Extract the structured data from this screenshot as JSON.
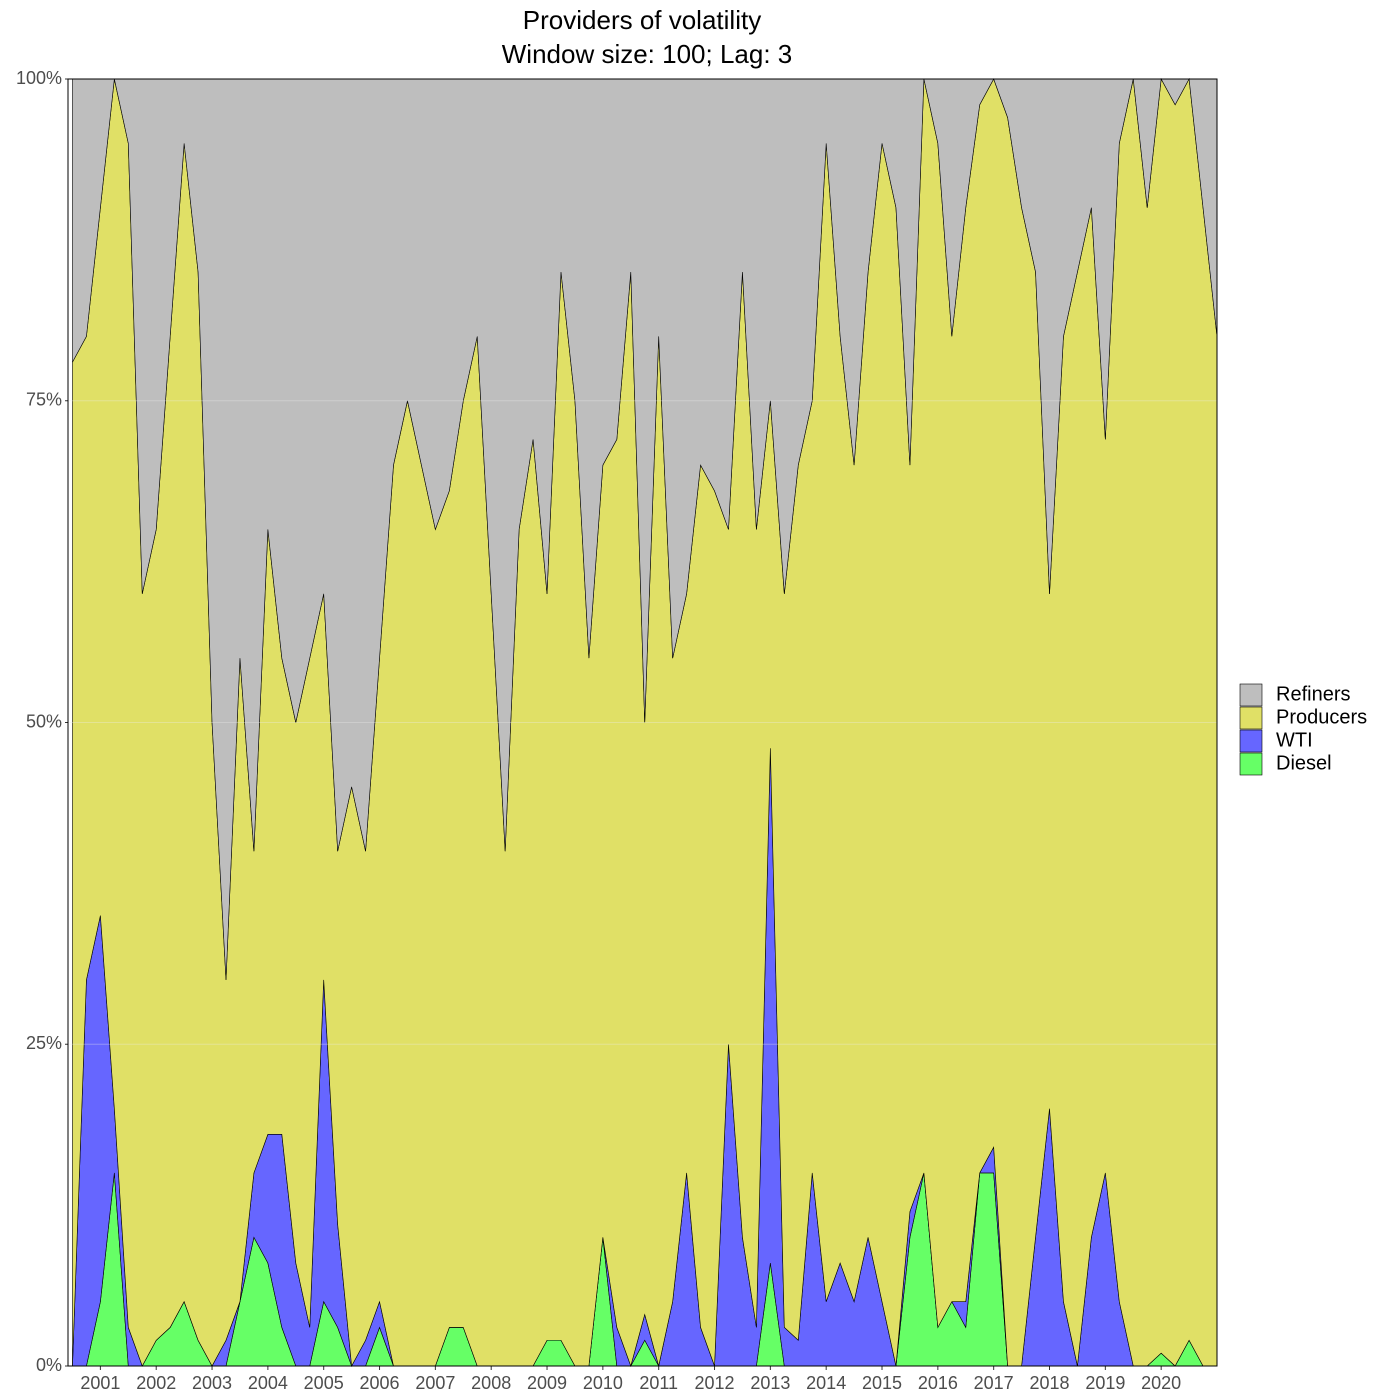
{
  "chart_data": {
    "type": "stacked_area",
    "title": "Providers of volatility",
    "subtitle": "Window size: 100; Lag: 3",
    "x": [
      2000.5,
      2000.75,
      2001.0,
      2001.25,
      2001.5,
      2001.75,
      2002.0,
      2002.25,
      2002.5,
      2002.75,
      2003.0,
      2003.25,
      2003.5,
      2003.75,
      2004.0,
      2004.25,
      2004.5,
      2004.75,
      2005.0,
      2005.25,
      2005.5,
      2005.75,
      2006.0,
      2006.25,
      2006.5,
      2006.75,
      2007.0,
      2007.25,
      2007.5,
      2007.75,
      2008.0,
      2008.25,
      2008.5,
      2008.75,
      2009.0,
      2009.25,
      2009.5,
      2009.75,
      2010.0,
      2010.25,
      2010.5,
      2010.75,
      2011.0,
      2011.25,
      2011.5,
      2011.75,
      2012.0,
      2012.25,
      2012.5,
      2012.75,
      2013.0,
      2013.25,
      2013.5,
      2013.75,
      2014.0,
      2014.25,
      2014.5,
      2014.75,
      2015.0,
      2015.25,
      2015.5,
      2015.75,
      2016.0,
      2016.25,
      2016.5,
      2016.75,
      2017.0,
      2017.25,
      2017.5,
      2017.75,
      2018.0,
      2018.25,
      2018.5,
      2018.75,
      2019.0,
      2019.25,
      2019.5,
      2019.75,
      2020.0,
      2020.25,
      2020.5,
      2020.75,
      2021.0
    ],
    "series": [
      {
        "name": "Diesel",
        "color": "#66ff66",
        "values": [
          0,
          0,
          5,
          15,
          0,
          0,
          2,
          3,
          5,
          2,
          0,
          0,
          5,
          10,
          8,
          3,
          0,
          0,
          5,
          3,
          0,
          0,
          3,
          0,
          0,
          0,
          0,
          3,
          3,
          0,
          0,
          0,
          0,
          0,
          2,
          2,
          0,
          0,
          10,
          0,
          0,
          2,
          0,
          0,
          0,
          0,
          0,
          0,
          0,
          0,
          8,
          0,
          0,
          0,
          0,
          0,
          0,
          0,
          0,
          0,
          10,
          15,
          3,
          5,
          3,
          15,
          15,
          0,
          0,
          0,
          0,
          0,
          0,
          0,
          0,
          0,
          0,
          0,
          1,
          0,
          2,
          0,
          0
        ]
      },
      {
        "name": "WTI",
        "color": "#6666ff",
        "values": [
          0,
          30,
          30,
          5,
          3,
          0,
          0,
          0,
          0,
          0,
          0,
          2,
          0,
          5,
          10,
          15,
          8,
          3,
          25,
          8,
          0,
          2,
          2,
          0,
          0,
          0,
          0,
          0,
          0,
          0,
          0,
          0,
          0,
          0,
          0,
          0,
          0,
          0,
          0,
          3,
          0,
          2,
          0,
          5,
          15,
          3,
          0,
          25,
          10,
          3,
          40,
          3,
          2,
          15,
          5,
          8,
          5,
          10,
          5,
          0,
          2,
          0,
          0,
          0,
          2,
          0,
          2,
          0,
          0,
          10,
          20,
          5,
          0,
          10,
          15,
          5,
          0,
          0,
          0,
          0,
          0,
          0,
          0
        ]
      },
      {
        "name": "Producers",
        "color": "#e0e066",
        "values": [
          78,
          50,
          55,
          80,
          92,
          60,
          63,
          77,
          90,
          83,
          50,
          28,
          50,
          25,
          47,
          37,
          42,
          52,
          30,
          29,
          45,
          38,
          50,
          70,
          75,
          70,
          65,
          65,
          72,
          80,
          60,
          40,
          65,
          72,
          58,
          83,
          75,
          55,
          60,
          69,
          85,
          46,
          80,
          50,
          45,
          67,
          68,
          40,
          75,
          62,
          27,
          57,
          68,
          60,
          90,
          72,
          65,
          75,
          90,
          90,
          58,
          85,
          92,
          75,
          85,
          83,
          83,
          97,
          90,
          75,
          40,
          75,
          85,
          80,
          57,
          90,
          100,
          90,
          99,
          98,
          98,
          90,
          80
        ]
      },
      {
        "name": "Refiners",
        "color": "#bebebe",
        "values": [
          22,
          20,
          10,
          0,
          5,
          40,
          35,
          20,
          5,
          15,
          50,
          70,
          45,
          60,
          35,
          45,
          50,
          45,
          40,
          60,
          55,
          60,
          45,
          30,
          25,
          30,
          35,
          32,
          25,
          20,
          40,
          60,
          35,
          28,
          40,
          15,
          25,
          45,
          30,
          28,
          15,
          50,
          20,
          45,
          40,
          30,
          32,
          35,
          15,
          35,
          25,
          40,
          30,
          25,
          5,
          20,
          30,
          15,
          5,
          10,
          30,
          0,
          5,
          20,
          10,
          2,
          0,
          3,
          10,
          15,
          40,
          20,
          15,
          10,
          28,
          5,
          0,
          10,
          0,
          2,
          0,
          10,
          20
        ]
      }
    ],
    "xlim": [
      2000.42,
      2021.0
    ],
    "xticks": [
      2001,
      2002,
      2003,
      2004,
      2005,
      2006,
      2007,
      2008,
      2009,
      2010,
      2011,
      2012,
      2013,
      2014,
      2015,
      2016,
      2017,
      2018,
      2019,
      2020
    ],
    "ylim": [
      0,
      100
    ],
    "yticks": [
      {
        "value": 0,
        "label": "0%"
      },
      {
        "value": 25,
        "label": "25%"
      },
      {
        "value": 50,
        "label": "50%"
      },
      {
        "value": 75,
        "label": "75%"
      },
      {
        "value": 100,
        "label": "100%"
      }
    ],
    "grid": true,
    "legend": "right"
  }
}
